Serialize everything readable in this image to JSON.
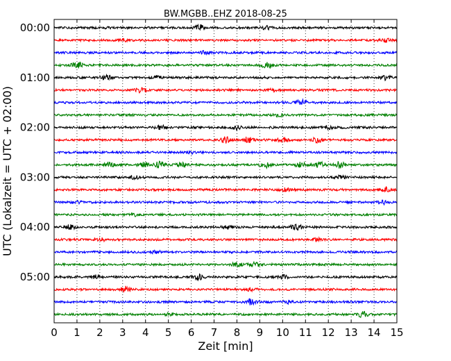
{
  "chart_data": {
    "type": "line",
    "title": "BW.MGBB..EHZ 2018-08-25",
    "xlabel": "Zeit  [min]",
    "ylabel": "UTC (Lokalzeit = UTC + 02:00)",
    "xlim": [
      0,
      15
    ],
    "x_ticks": [
      0,
      1,
      2,
      3,
      4,
      5,
      6,
      7,
      8,
      9,
      10,
      11,
      12,
      13,
      14,
      15
    ],
    "x_tick_labels": [
      "0",
      "1",
      "2",
      "3",
      "4",
      "5",
      "6",
      "7",
      "8",
      "9",
      "10",
      "11",
      "12",
      "13",
      "14",
      "15"
    ],
    "y_tick_labels": [
      "00:00",
      "01:00",
      "02:00",
      "03:00",
      "04:00",
      "05:00"
    ],
    "y_tick_rows": [
      0,
      4,
      8,
      12,
      16,
      20
    ],
    "row_interval_minutes": 15,
    "grid": "vertical dotted",
    "colors": [
      "#000000",
      "#ff0000",
      "#0000ff",
      "#008000"
    ],
    "trace_rows": [
      {
        "start": "00:00",
        "color": "#000000",
        "bursts": [
          {
            "x": 6.4,
            "amp": 4
          },
          {
            "x": 9.3,
            "amp": 2
          }
        ]
      },
      {
        "start": "00:15",
        "color": "#ff0000",
        "bursts": [
          {
            "x": 3.0,
            "amp": 2
          },
          {
            "x": 14.5,
            "amp": 2
          }
        ]
      },
      {
        "start": "00:30",
        "color": "#0000ff",
        "bursts": [
          {
            "x": 6.6,
            "amp": 2
          }
        ]
      },
      {
        "start": "00:45",
        "color": "#008000",
        "bursts": [
          {
            "x": 1.0,
            "amp": 4.5
          },
          {
            "x": 9.3,
            "amp": 4
          }
        ]
      },
      {
        "start": "01:00",
        "color": "#000000",
        "bursts": [
          {
            "x": 2.3,
            "amp": 3
          },
          {
            "x": 4.5,
            "amp": 2
          },
          {
            "x": 14.5,
            "amp": 3
          }
        ]
      },
      {
        "start": "01:15",
        "color": "#ff0000",
        "bursts": [
          {
            "x": 3.8,
            "amp": 3.5
          },
          {
            "x": 9.5,
            "amp": 2
          }
        ]
      },
      {
        "start": "01:30",
        "color": "#0000ff",
        "bursts": [
          {
            "x": 10.8,
            "amp": 4
          }
        ]
      },
      {
        "start": "01:45",
        "color": "#008000",
        "bursts": [
          {
            "x": 9.8,
            "amp": 2
          }
        ]
      },
      {
        "start": "02:00",
        "color": "#000000",
        "bursts": [
          {
            "x": 8.0,
            "amp": 3
          },
          {
            "x": 4.7,
            "amp": 2.5
          },
          {
            "x": 12.0,
            "amp": 2
          }
        ]
      },
      {
        "start": "02:15",
        "color": "#ff0000",
        "bursts": [
          {
            "x": 7.5,
            "amp": 3.5
          },
          {
            "x": 8.5,
            "amp": 4
          },
          {
            "x": 10.0,
            "amp": 3
          },
          {
            "x": 11.5,
            "amp": 3
          }
        ]
      },
      {
        "start": "02:30",
        "color": "#0000ff",
        "bursts": [
          {
            "x": 6.0,
            "amp": 1.5
          }
        ]
      },
      {
        "start": "02:45",
        "color": "#008000",
        "bursts": [
          {
            "x": 2.4,
            "amp": 3
          },
          {
            "x": 3.9,
            "amp": 4
          },
          {
            "x": 4.6,
            "amp": 4
          },
          {
            "x": 5.6,
            "amp": 3
          },
          {
            "x": 9.3,
            "amp": 3.5
          },
          {
            "x": 10.8,
            "amp": 3
          },
          {
            "x": 11.6,
            "amp": 4
          },
          {
            "x": 12.5,
            "amp": 4
          }
        ]
      },
      {
        "start": "03:00",
        "color": "#000000",
        "bursts": [
          {
            "x": 3.5,
            "amp": 2.5
          },
          {
            "x": 12.5,
            "amp": 2
          }
        ]
      },
      {
        "start": "03:15",
        "color": "#ff0000",
        "bursts": [
          {
            "x": 10.2,
            "amp": 2
          },
          {
            "x": 14.5,
            "amp": 3
          }
        ]
      },
      {
        "start": "03:30",
        "color": "#0000ff",
        "bursts": [
          {
            "x": 1.0,
            "amp": 2
          },
          {
            "x": 14.4,
            "amp": 2
          }
        ]
      },
      {
        "start": "03:45",
        "color": "#008000",
        "bursts": [
          {
            "x": 3.5,
            "amp": 1.5
          }
        ]
      },
      {
        "start": "04:00",
        "color": "#000000",
        "bursts": [
          {
            "x": 0.7,
            "amp": 3
          },
          {
            "x": 7.6,
            "amp": 2
          },
          {
            "x": 10.6,
            "amp": 3.5
          }
        ]
      },
      {
        "start": "04:15",
        "color": "#ff0000",
        "bursts": [
          {
            "x": 2.0,
            "amp": 2
          },
          {
            "x": 11.5,
            "amp": 2
          }
        ]
      },
      {
        "start": "04:30",
        "color": "#0000ff",
        "bursts": [
          {
            "x": 4.5,
            "amp": 2
          }
        ]
      },
      {
        "start": "04:45",
        "color": "#008000",
        "bursts": [
          {
            "x": 8.0,
            "amp": 3
          },
          {
            "x": 8.8,
            "amp": 3
          }
        ]
      },
      {
        "start": "05:00",
        "color": "#000000",
        "bursts": [
          {
            "x": 1.8,
            "amp": 2.5
          },
          {
            "x": 6.3,
            "amp": 3.5
          },
          {
            "x": 10.0,
            "amp": 2
          }
        ]
      },
      {
        "start": "05:15",
        "color": "#ff0000",
        "bursts": [
          {
            "x": 3.1,
            "amp": 4
          },
          {
            "x": 8.6,
            "amp": 2
          }
        ]
      },
      {
        "start": "05:30",
        "color": "#0000ff",
        "bursts": [
          {
            "x": 8.6,
            "amp": 3.5
          },
          {
            "x": 10.2,
            "amp": 2
          }
        ]
      },
      {
        "start": "05:45",
        "color": "#008000",
        "bursts": [
          {
            "x": 13.5,
            "amp": 4
          },
          {
            "x": 5.0,
            "amp": 2
          }
        ]
      }
    ]
  }
}
